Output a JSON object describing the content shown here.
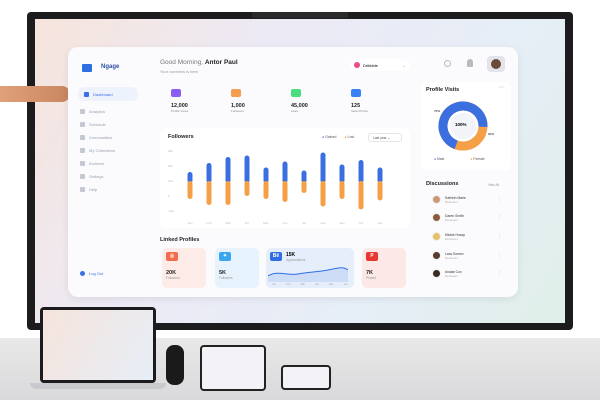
{
  "app": {
    "brand": "Ngage",
    "greeting": "Good Morning,",
    "user": "Antor Paul",
    "subtitle": "Your overview is here",
    "workspace": "Dribbble"
  },
  "sidebar": {
    "items": [
      {
        "label": "Dashboard",
        "active": true
      },
      {
        "label": "Analytics"
      },
      {
        "label": "Schedule"
      },
      {
        "label": "Communities"
      },
      {
        "label": "My Collections"
      },
      {
        "label": "Archives"
      },
      {
        "label": "Settings"
      },
      {
        "label": "Help"
      }
    ],
    "logout": "Log Out"
  },
  "stats": [
    {
      "value": "12,000",
      "label": "Profile Views",
      "color": "#8b5cf6",
      "bg": "#f1edfb"
    },
    {
      "value": "1,000",
      "label": "Followers",
      "color": "#f59e52",
      "bg": "#fdf1e6"
    },
    {
      "value": "45,000",
      "label": "Likes",
      "color": "#4ade80",
      "bg": "#eaf7ee"
    },
    {
      "value": "125",
      "label": "Saved Posts",
      "color": "#3b82f6",
      "bg": "#e9f0fc"
    }
  ],
  "followers": {
    "title": "Followers",
    "filter": "Last year",
    "legend": [
      "Gained",
      "Lost"
    ]
  },
  "chart_data": {
    "type": "bar",
    "stacked": true,
    "categories": [
      "Jan",
      "Feb",
      "Mar",
      "Apr",
      "May",
      "Jun",
      "Jul",
      "Aug",
      "Sep",
      "Oct",
      "Nov"
    ],
    "series": [
      {
        "name": "Gained",
        "color": "#3b6fe0",
        "values": [
          6,
          12,
          16,
          17,
          9,
          13,
          7,
          19,
          11,
          14,
          9
        ]
      },
      {
        "name": "Lost",
        "color": "#f5a047",
        "values": [
          -12,
          -16,
          -16,
          -10,
          -12,
          -14,
          -8,
          -17,
          -12,
          -19,
          -13
        ]
      }
    ],
    "yticks": [
      "30k",
      "20k",
      "10k",
      "0",
      "-10k"
    ],
    "legend": "top-right"
  },
  "linked": {
    "title": "Linked Profiles",
    "items": [
      {
        "icon": "instagram",
        "value": "20K",
        "label": "Followers",
        "color": "#f26b4b",
        "bg": "#fcebe6"
      },
      {
        "icon": "twitter",
        "value": "5K",
        "label": "Followers",
        "color": "#38a7ee",
        "bg": "#e7f3fc"
      },
      {
        "icon": "behance",
        "glyph": "Bē",
        "value": "15K",
        "label": "Appreciations",
        "color": "#2f6fe4",
        "bg": "#e6eefb",
        "months": [
          "Jan",
          "Feb",
          "Mar",
          "Apr",
          "May",
          "Jun"
        ]
      },
      {
        "icon": "pinterest",
        "value": "7K",
        "label": "Pinned",
        "color": "#e8372f",
        "bg": "#fce8e6"
      }
    ]
  },
  "visits": {
    "title": "Profile Visits",
    "center": "100%",
    "male_pct": "70%",
    "female_pct": "30%",
    "male": 0.7,
    "legend": [
      "Male",
      "Female"
    ],
    "colors": [
      "#3b6fe0",
      "#f5a047"
    ]
  },
  "discussions": {
    "title": "Discussions",
    "view_all": "View All",
    "people": [
      {
        "name": "Kathein Marie",
        "role": "Moderator"
      },
      {
        "name": "Daren Smith",
        "role": "Developer"
      },
      {
        "name": "Mickie Hussy",
        "role": "Developer"
      },
      {
        "name": "Lara Gomez",
        "role": "Developer"
      },
      {
        "name": "Avatar Cox",
        "role": "Developer"
      }
    ]
  }
}
